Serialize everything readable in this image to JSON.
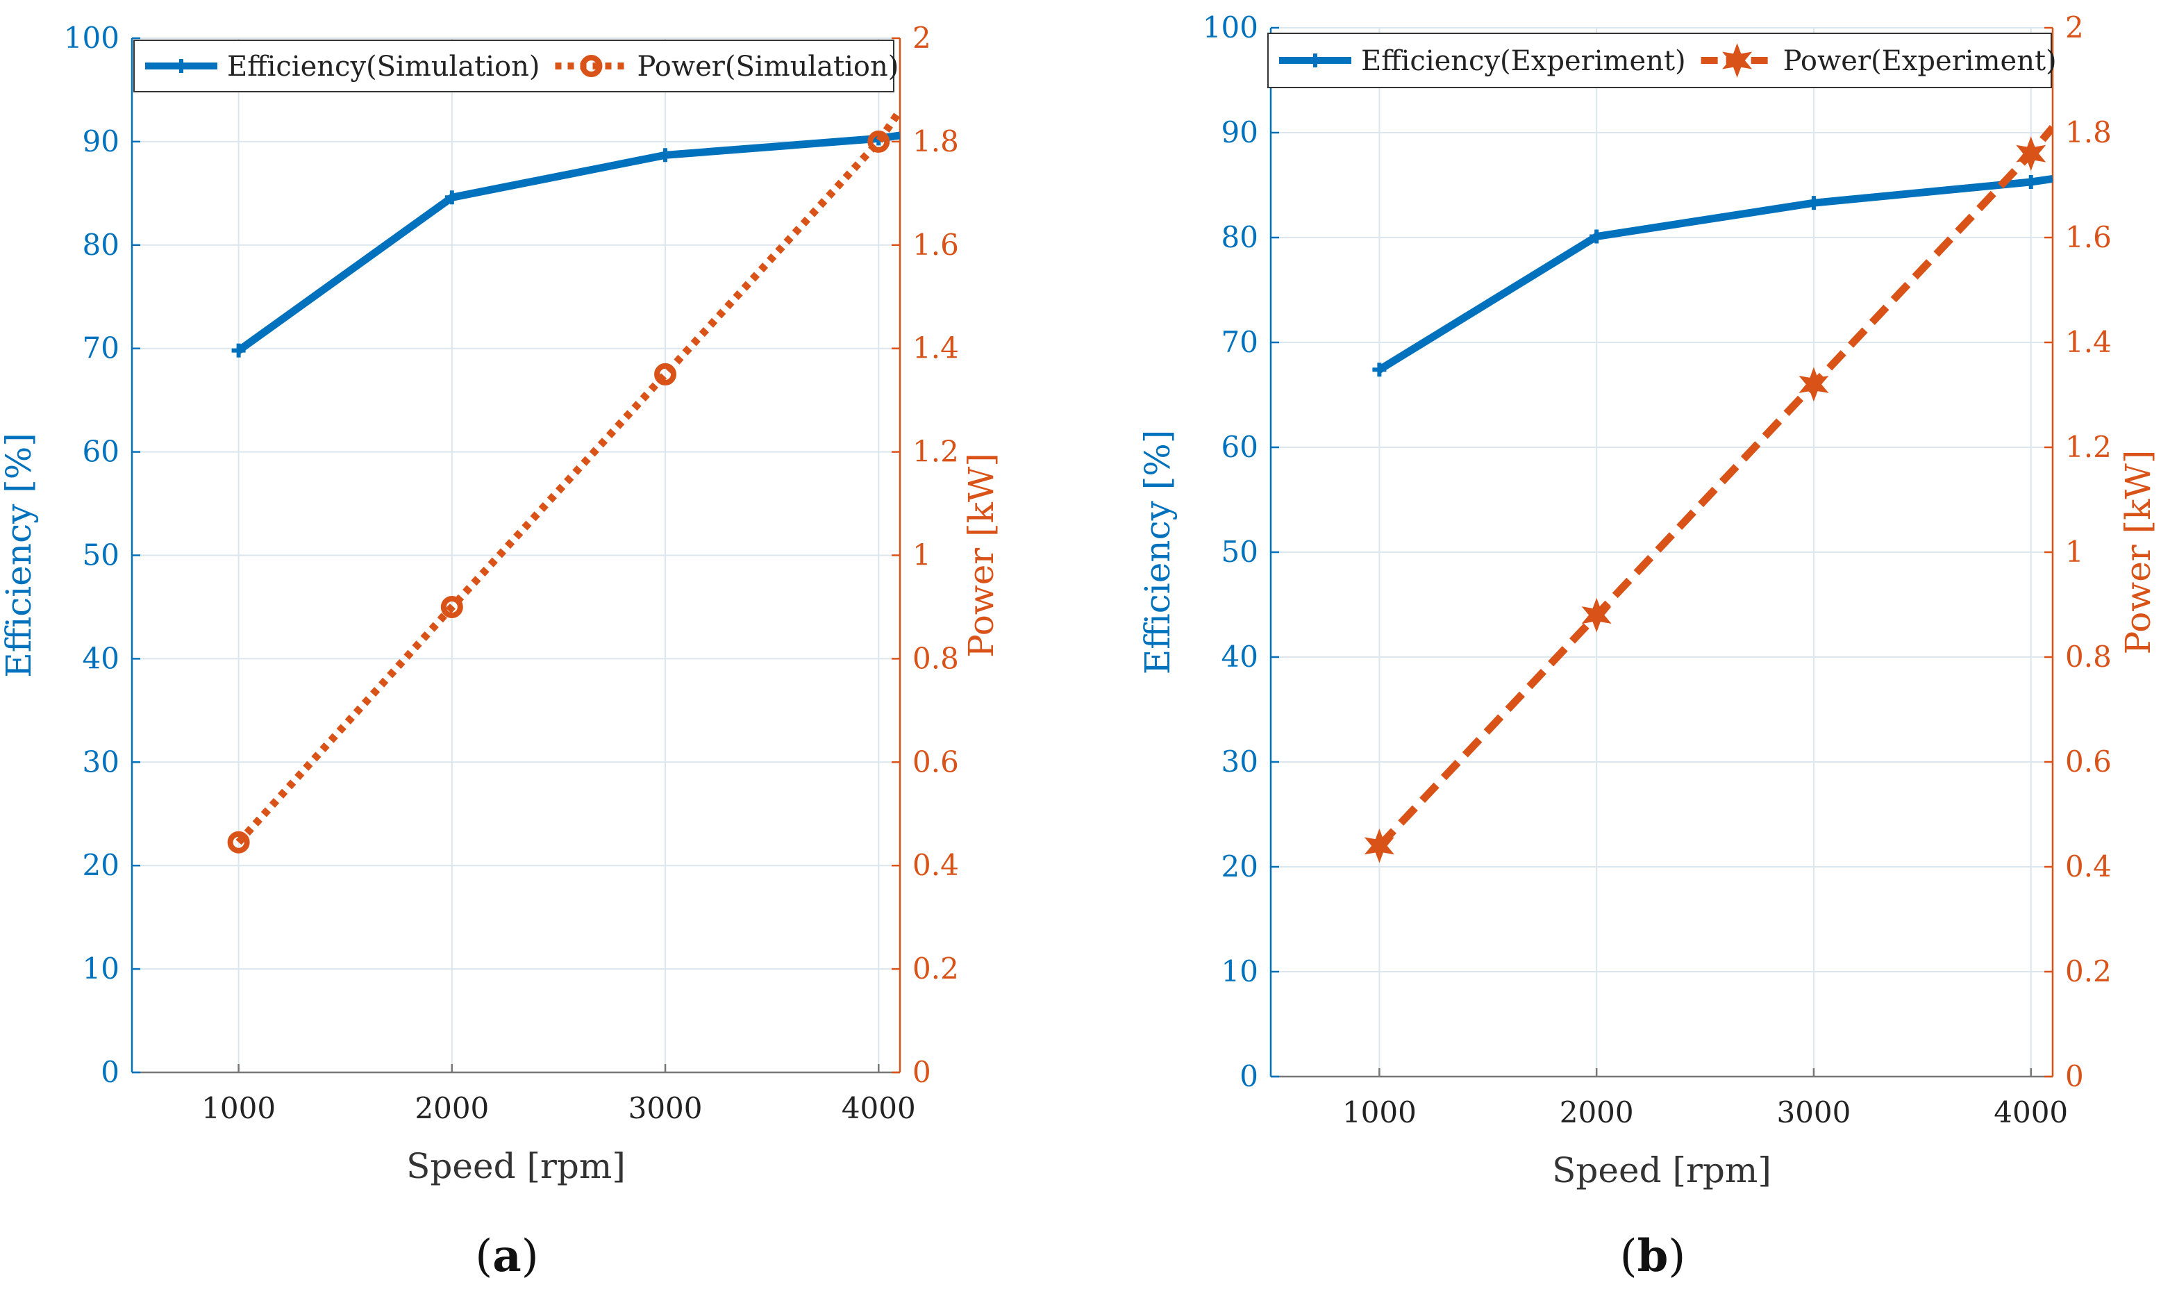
{
  "colors": {
    "efficiency": "#0072BD",
    "power": "#D95319",
    "grid": "#DCE6EE",
    "axis_x": "#777777",
    "text": "#222222"
  },
  "chart_data": [
    {
      "type": "line",
      "panel_label": "a",
      "xlabel": "Speed [rpm]",
      "ylabel_left": "Efficiency [%]",
      "ylabel_right": "Power [kW]",
      "xlim": [
        500,
        4100
      ],
      "ylim_left": [
        0,
        100
      ],
      "ylim_right": [
        0,
        2
      ],
      "x_ticks": [
        1000,
        2000,
        3000,
        4000
      ],
      "y_ticks_left": [
        0,
        10,
        20,
        30,
        40,
        50,
        60,
        70,
        80,
        90,
        100
      ],
      "y_ticks_right": [
        0,
        0.2,
        0.4,
        0.6,
        0.8,
        1,
        1.2,
        1.4,
        1.6,
        1.8,
        2
      ],
      "grid": true,
      "legend_position": "top",
      "series": [
        {
          "name": "Efficiency(Simulation)",
          "axis": "left",
          "style": "solid",
          "marker": "plus",
          "x": [
            1000,
            2000,
            3000,
            4000,
            4100
          ],
          "values": [
            69.8,
            84.6,
            88.7,
            90.3,
            90.6
          ]
        },
        {
          "name": "Power(Simulation)",
          "axis": "right",
          "style": "dotted",
          "marker": "circle",
          "x": [
            1000,
            2000,
            3000,
            4000,
            4100
          ],
          "values": [
            0.445,
            0.9,
            1.35,
            1.8,
            1.86
          ]
        }
      ]
    },
    {
      "type": "line",
      "panel_label": "b",
      "xlabel": "Speed [rpm]",
      "ylabel_left": "Efficiency [%]",
      "ylabel_right": "Power [kW]",
      "xlim": [
        500,
        4100
      ],
      "ylim_left": [
        0,
        100
      ],
      "ylim_right": [
        0,
        2
      ],
      "x_ticks": [
        1000,
        2000,
        3000,
        4000
      ],
      "y_ticks_left": [
        0,
        10,
        20,
        30,
        40,
        50,
        60,
        70,
        80,
        90,
        100
      ],
      "y_ticks_right": [
        0,
        0.2,
        0.4,
        0.6,
        0.8,
        1,
        1.2,
        1.4,
        1.6,
        1.8,
        2
      ],
      "grid": true,
      "legend_position": "top",
      "series": [
        {
          "name": "Efficiency(Experiment)",
          "axis": "left",
          "style": "solid",
          "marker": "plus",
          "x": [
            1000,
            2000,
            3000,
            4000,
            4100
          ],
          "values": [
            67.4,
            80.1,
            83.3,
            85.3,
            85.6
          ]
        },
        {
          "name": "Power(Experiment)",
          "axis": "right",
          "style": "dashed",
          "marker": "star",
          "x": [
            1000,
            2000,
            3000,
            4000,
            4100
          ],
          "values": [
            0.44,
            0.88,
            1.32,
            1.76,
            1.81
          ]
        }
      ]
    }
  ]
}
